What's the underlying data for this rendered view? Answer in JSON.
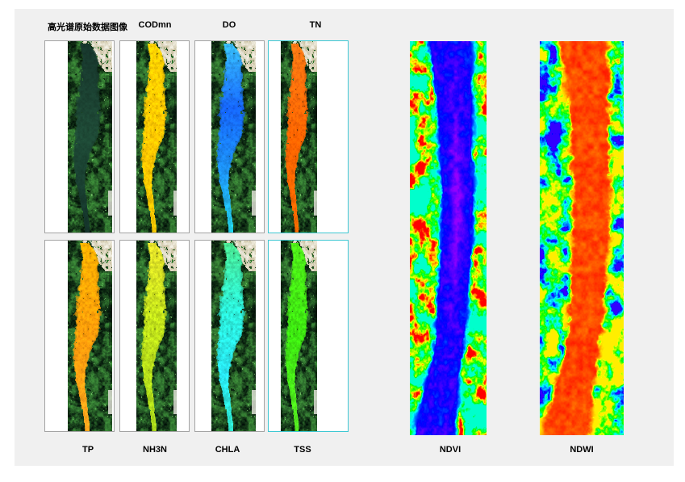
{
  "header": {
    "title": "高光谱原始数据图像"
  },
  "colors": {
    "page_bg": "#ffffff",
    "figure_bg": "#f0f0f0",
    "panel_bg": "#ffffff",
    "panel_border": "#a3a3a3",
    "selected_border": "#3ec7d2",
    "label_color": "#000000"
  },
  "scene": {
    "vegetation_dark": "#0b2410",
    "vegetation_green": "#357d33",
    "vegetation_bright": "#8fd87d",
    "sand": "#c9c0a0",
    "sand_light": "#f4f1e6",
    "road_white": "#e9e7df",
    "pit_dark": "#06140a"
  },
  "panels": [
    {
      "id": "hsi-raw",
      "label": "高光谱原始数据图像",
      "selected": false,
      "type": "natural",
      "river_stops": [
        [
          0,
          "#17362c"
        ],
        [
          0.5,
          "#1e4a36"
        ],
        [
          1,
          "#14332a"
        ]
      ]
    },
    {
      "id": "codmn",
      "label": "CODmn",
      "selected": false,
      "type": "param",
      "river_stops": [
        [
          0,
          "#ffd400"
        ],
        [
          0.5,
          "#ffc800"
        ],
        [
          1,
          "#f0c400"
        ]
      ]
    },
    {
      "id": "do",
      "label": "DO",
      "selected": false,
      "type": "param",
      "river_stops": [
        [
          0,
          "#38c0f8"
        ],
        [
          0.35,
          "#1565fd"
        ],
        [
          0.7,
          "#1d96f2"
        ],
        [
          1,
          "#22d0e6"
        ]
      ]
    },
    {
      "id": "tn",
      "label": "TN",
      "selected": true,
      "type": "param",
      "river_stops": [
        [
          0,
          "#ff7a14"
        ],
        [
          0.5,
          "#ff6400"
        ],
        [
          1,
          "#f56a00"
        ]
      ]
    },
    {
      "id": "tp",
      "label": "TP",
      "selected": false,
      "type": "param",
      "river_stops": [
        [
          0,
          "#ffb400"
        ],
        [
          0.5,
          "#ff9c0a"
        ],
        [
          1,
          "#ffa81e"
        ]
      ]
    },
    {
      "id": "nh3n",
      "label": "NH3N",
      "selected": false,
      "type": "param",
      "river_stops": [
        [
          0,
          "#e8e32a"
        ],
        [
          0.4,
          "#c3e31a"
        ],
        [
          1,
          "#a8d81a"
        ]
      ]
    },
    {
      "id": "chla",
      "label": "CHLA",
      "selected": false,
      "type": "param",
      "river_stops": [
        [
          0,
          "#4ae890"
        ],
        [
          0.35,
          "#2cf0d8"
        ],
        [
          0.7,
          "#28e4f0"
        ],
        [
          1,
          "#2ee8cc"
        ]
      ]
    },
    {
      "id": "tss",
      "label": "TSS",
      "selected": true,
      "type": "param",
      "river_stops": [
        [
          0,
          "#50f018"
        ],
        [
          0.5,
          "#3ce610"
        ],
        [
          1,
          "#55ec20"
        ]
      ]
    }
  ],
  "indices": [
    {
      "id": "ndvi",
      "label": "NDVI",
      "water": "low"
    },
    {
      "id": "ndwi",
      "label": "NDWI",
      "water": "high"
    }
  ]
}
